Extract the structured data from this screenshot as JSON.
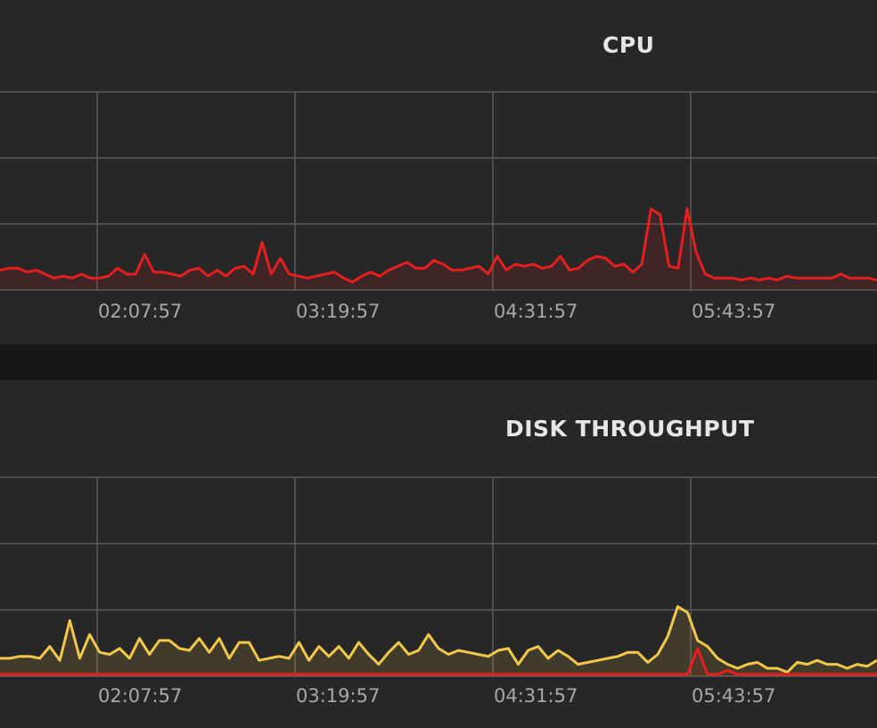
{
  "colors": {
    "background": "#272727",
    "separator": "#161616",
    "grid": "#5a5a5a",
    "cpu_series": "#e51f1f",
    "disk_read_series": "#f2c84b",
    "disk_write_series": "#e51f1f"
  },
  "chart_data": [
    {
      "type": "area",
      "title": "CPU",
      "x_tick_labels": [
        "02:07:57",
        "03:19:57",
        "04:31:57",
        "05:43:57"
      ],
      "grid": true,
      "y_gridlines": 4,
      "ylim": [
        0,
        100
      ],
      "series": [
        {
          "color": "#e51f1f",
          "values": [
            10,
            11,
            11,
            9,
            10,
            8,
            6,
            7,
            6,
            8,
            6,
            6,
            7,
            11,
            8,
            8,
            18,
            9,
            9,
            8,
            7,
            10,
            11,
            7,
            10,
            7,
            11,
            12,
            8,
            24,
            8,
            16,
            8,
            7,
            6,
            7,
            8,
            9,
            6,
            4,
            7,
            9,
            7,
            10,
            12,
            14,
            11,
            11,
            15,
            13,
            10,
            10,
            11,
            12,
            8,
            17,
            10,
            13,
            12,
            13,
            11,
            12,
            17,
            10,
            11,
            15,
            17,
            16,
            12,
            13,
            9,
            13,
            41,
            38,
            12,
            11,
            41,
            19,
            8,
            6,
            6,
            6,
            5,
            6,
            5,
            6,
            5,
            7,
            6,
            6,
            6,
            6,
            6,
            8,
            6,
            6,
            6,
            5
          ]
        }
      ]
    },
    {
      "type": "area",
      "title": "DISK THROUGHPUT",
      "x_tick_labels": [
        "02:07:57",
        "03:19:57",
        "04:31:57",
        "05:43:57"
      ],
      "grid": true,
      "y_gridlines": 4,
      "ylim": [
        0,
        100
      ],
      "series": [
        {
          "color": "#f2c84b",
          "values": [
            9,
            9,
            10,
            10,
            9,
            15,
            8,
            28,
            9,
            21,
            12,
            11,
            14,
            9,
            19,
            11,
            18,
            18,
            14,
            13,
            19,
            12,
            19,
            9,
            17,
            17,
            8,
            9,
            10,
            9,
            17,
            8,
            15,
            10,
            15,
            9,
            17,
            11,
            6,
            12,
            17,
            11,
            13,
            21,
            14,
            11,
            13,
            12,
            11,
            10,
            13,
            14,
            6,
            13,
            15,
            9,
            13,
            10,
            6,
            7,
            8,
            9,
            10,
            12,
            12,
            7,
            11,
            20,
            35,
            32,
            18,
            15,
            9,
            6,
            4,
            6,
            7,
            4,
            4,
            2,
            7,
            6,
            8,
            6,
            6,
            4,
            6,
            5,
            8
          ]
        },
        {
          "color": "#e51f1f",
          "values": [
            1,
            1,
            1,
            1,
            1,
            1,
            1,
            1,
            1,
            1,
            1,
            1,
            1,
            1,
            1,
            1,
            1,
            1,
            1,
            1,
            1,
            1,
            1,
            1,
            1,
            1,
            1,
            1,
            1,
            1,
            1,
            1,
            1,
            1,
            1,
            1,
            1,
            1,
            1,
            1,
            1,
            1,
            1,
            1,
            1,
            1,
            1,
            1,
            1,
            1,
            1,
            1,
            1,
            1,
            1,
            1,
            1,
            1,
            1,
            1,
            1,
            1,
            1,
            1,
            1,
            1,
            1,
            1,
            1,
            1,
            14,
            1,
            1,
            3,
            1,
            1,
            1,
            1,
            1,
            1,
            1,
            1,
            1,
            1,
            1,
            1,
            1,
            1,
            1
          ]
        }
      ]
    }
  ]
}
